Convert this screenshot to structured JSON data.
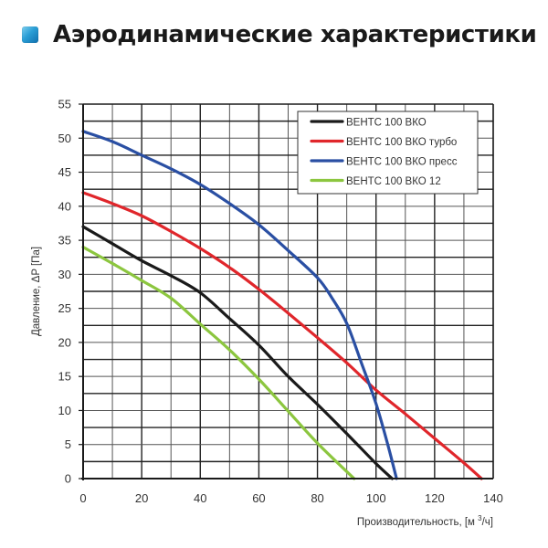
{
  "header": {
    "title": "Аэродинамические характеристики",
    "icon": "blue-square-icon"
  },
  "chart_data": {
    "type": "line",
    "title": "Аэродинамические характеристики",
    "xlabel": "Производительность, [м³/ч]",
    "ylabel": "Давление, ΔP [Па]",
    "xlim": [
      0,
      140
    ],
    "ylim": [
      0,
      55
    ],
    "xticks": [
      0,
      20,
      40,
      60,
      80,
      100,
      120,
      140
    ],
    "yticks": [
      0,
      5,
      10,
      15,
      20,
      25,
      30,
      35,
      40,
      45,
      50,
      55
    ],
    "grid": true,
    "grid_x_step": 10,
    "grid_y_step": 2.5,
    "legend_position": "upper right",
    "series": [
      {
        "name": "ВЕНТС 100 ВКО",
        "color": "#1a1a1a",
        "x": [
          0,
          10,
          20,
          30,
          40,
          50,
          60,
          70,
          80,
          90,
          100,
          105.5
        ],
        "y": [
          37,
          34.5,
          32,
          29.8,
          27.3,
          23.5,
          19.6,
          15.0,
          10.9,
          6.6,
          2.2,
          0
        ]
      },
      {
        "name": "ВЕНТС 100 ВКО турбо",
        "color": "#e0262b",
        "x": [
          0,
          10,
          20,
          30,
          40,
          50,
          60,
          70,
          80,
          90,
          100,
          110,
          120,
          130,
          136
        ],
        "y": [
          42,
          40.4,
          38.6,
          36.3,
          33.8,
          31.0,
          27.8,
          24.3,
          20.7,
          17.0,
          13.0,
          9.5,
          5.9,
          2.3,
          0
        ]
      },
      {
        "name": "ВЕНТС 100 ВКО пресс",
        "color": "#2a4fa3",
        "x": [
          0,
          10,
          20,
          30,
          40,
          50,
          60,
          70,
          80,
          85,
          90,
          95,
          100,
          104,
          107
        ],
        "y": [
          51,
          49.5,
          47.5,
          45.5,
          43.2,
          40.4,
          37.3,
          33.5,
          29.5,
          26.5,
          22.8,
          17.0,
          11.0,
          5.0,
          0
        ]
      },
      {
        "name": "ВЕНТС 100 ВКО 12",
        "color": "#8cc63f",
        "x": [
          0,
          10,
          20,
          30,
          40,
          50,
          60,
          70,
          80,
          92.5
        ],
        "y": [
          34,
          31.6,
          29.1,
          26.5,
          22.7,
          18.9,
          14.6,
          9.9,
          5.2,
          0
        ]
      }
    ]
  }
}
